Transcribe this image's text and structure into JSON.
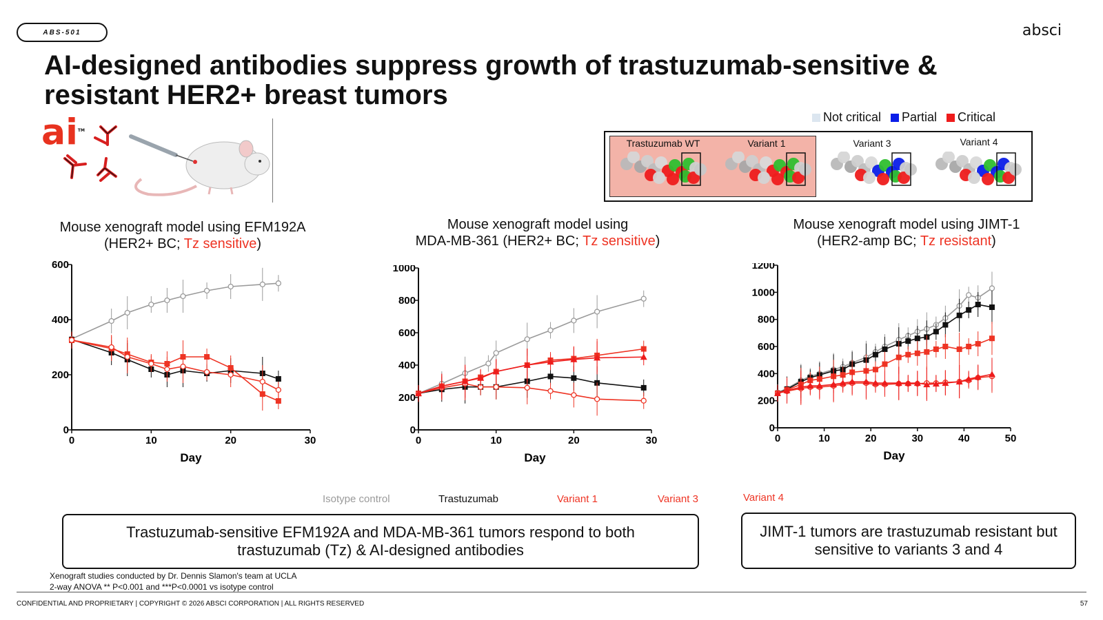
{
  "tag": "ABS-501",
  "logo": "absci",
  "title": "AI-designed antibodies suppress growth of trastuzumab-sensitive & resistant HER2+ breast tumors",
  "ai_logo": "ai",
  "ai_tm": "TM",
  "epitope_legend": [
    {
      "label": "Not critical",
      "color": "#dce6f0"
    },
    {
      "label": "Partial",
      "color": "#0b1ee8"
    },
    {
      "label": "Critical",
      "color": "#ee1c1c"
    }
  ],
  "variants": [
    "Trastuzumab WT",
    "Variant 1",
    "Variant 3",
    "Variant 4"
  ],
  "colors": {
    "isotype": "#9a9a9a",
    "trastuzumab": "#111111",
    "variant1": "#ee3424",
    "variant3": "#ee3424",
    "variant4": "#ee1c1c"
  },
  "panels": [
    {
      "title_1": "Mouse xenograft model using EFM192A",
      "title_2a": "(HER2+ BC; ",
      "title_red": "Tz sensitive",
      "title_2b": ")"
    },
    {
      "title_1": "Mouse xenograft model using",
      "title_2a": "MDA-MB-361 (HER2+ BC; ",
      "title_red": "Tz sensitive",
      "title_2b": ")"
    },
    {
      "title_1": "Mouse xenograft model using JIMT-1",
      "title_2a": "(HER2-amp BC; ",
      "title_red": "Tz resistant",
      "title_2b": ")"
    }
  ],
  "chart_data": [
    {
      "type": "line",
      "xlabel": "Day",
      "xlim": [
        0,
        30
      ],
      "ylim": [
        0,
        600
      ],
      "xticks": [
        "0",
        "10",
        "20",
        "30"
      ],
      "yticks": [
        "0",
        "200",
        "400",
        "600"
      ],
      "series": [
        {
          "key": "isotype",
          "x": [
            0,
            5,
            7,
            10,
            12,
            14,
            17,
            20,
            24,
            26
          ],
          "y": [
            330,
            395,
            425,
            455,
            470,
            485,
            505,
            520,
            528,
            532
          ]
        },
        {
          "key": "trastuzumab",
          "x": [
            0,
            5,
            7,
            10,
            12,
            14,
            17,
            20,
            24,
            26
          ],
          "y": [
            328,
            280,
            255,
            220,
            200,
            215,
            205,
            215,
            205,
            185
          ]
        },
        {
          "key": "variant1",
          "x": [
            0,
            5,
            7,
            10,
            12,
            14,
            17,
            20,
            24,
            26
          ],
          "y": [
            325,
            295,
            275,
            245,
            240,
            265,
            265,
            225,
            130,
            105
          ]
        },
        {
          "key": "variant3",
          "x": [
            0,
            5,
            7,
            10,
            12,
            14,
            17,
            20,
            24,
            26
          ],
          "y": [
            326,
            300,
            265,
            240,
            220,
            230,
            210,
            200,
            175,
            145
          ]
        }
      ]
    },
    {
      "type": "line",
      "xlabel": "Day",
      "xlim": [
        0,
        30
      ],
      "ylim": [
        0,
        1000
      ],
      "xticks": [
        "0",
        "10",
        "20",
        "30"
      ],
      "yticks": [
        "0",
        "200",
        "400",
        "600",
        "800",
        "1000"
      ],
      "series": [
        {
          "key": "isotype",
          "x": [
            0,
            3,
            6,
            9,
            10,
            14,
            17,
            20,
            23,
            29
          ],
          "y": [
            225,
            285,
            350,
            410,
            475,
            560,
            615,
            675,
            730,
            810
          ]
        },
        {
          "key": "trastuzumab",
          "x": [
            0,
            3,
            6,
            8,
            10,
            14,
            17,
            20,
            23,
            29
          ],
          "y": [
            225,
            250,
            265,
            265,
            265,
            300,
            330,
            320,
            290,
            260
          ]
        },
        {
          "key": "variant1",
          "x": [
            0,
            3,
            6,
            8,
            10,
            14,
            17,
            20,
            23,
            29
          ],
          "y": [
            225,
            270,
            300,
            325,
            360,
            400,
            430,
            440,
            460,
            500
          ]
        },
        {
          "key": "variant3",
          "x": [
            0,
            3,
            6,
            8,
            10,
            14,
            17,
            20,
            23,
            29
          ],
          "y": [
            225,
            260,
            285,
            265,
            265,
            260,
            240,
            215,
            190,
            180
          ]
        },
        {
          "key": "variant4",
          "x": [
            0,
            3,
            6,
            8,
            10,
            14,
            17,
            20,
            23,
            29
          ],
          "y": [
            225,
            270,
            300,
            320,
            360,
            400,
            420,
            435,
            445,
            450
          ]
        }
      ]
    },
    {
      "type": "line",
      "xlabel": "Day",
      "xlim": [
        0,
        50
      ],
      "ylim": [
        0,
        1200
      ],
      "xticks": [
        "0",
        "10",
        "20",
        "30",
        "40",
        "50"
      ],
      "yticks": [
        "0",
        "200",
        "400",
        "600",
        "800",
        "1000",
        "1200"
      ],
      "series": [
        {
          "key": "isotype",
          "x": [
            0,
            2,
            5,
            7,
            9,
            12,
            14,
            16,
            19,
            21,
            23,
            26,
            28,
            30,
            32,
            34,
            36,
            39,
            41,
            43,
            46
          ],
          "y": [
            260,
            290,
            350,
            380,
            400,
            430,
            450,
            480,
            520,
            560,
            600,
            650,
            680,
            710,
            730,
            760,
            810,
            900,
            980,
            960,
            1030
          ]
        },
        {
          "key": "trastuzumab",
          "x": [
            0,
            2,
            5,
            7,
            9,
            12,
            14,
            16,
            19,
            21,
            23,
            26,
            28,
            30,
            32,
            34,
            36,
            39,
            41,
            43,
            46
          ],
          "y": [
            255,
            285,
            340,
            370,
            390,
            420,
            430,
            470,
            500,
            540,
            580,
            620,
            640,
            660,
            670,
            710,
            760,
            830,
            870,
            910,
            890
          ]
        },
        {
          "key": "variant1",
          "x": [
            0,
            2,
            5,
            7,
            9,
            12,
            14,
            16,
            19,
            21,
            23,
            26,
            28,
            30,
            32,
            34,
            36,
            39,
            41,
            43,
            46
          ],
          "y": [
            255,
            280,
            320,
            350,
            360,
            380,
            390,
            410,
            420,
            430,
            470,
            520,
            540,
            550,
            560,
            580,
            600,
            580,
            600,
            620,
            660
          ]
        },
        {
          "key": "variant3",
          "x": [
            0,
            2,
            5,
            7,
            9,
            12,
            14,
            16,
            19,
            21,
            23,
            26,
            28,
            30,
            32,
            34,
            36,
            39,
            41,
            43,
            46
          ],
          "y": [
            255,
            270,
            290,
            300,
            300,
            310,
            320,
            330,
            330,
            320,
            320,
            325,
            325,
            325,
            330,
            330,
            335,
            340,
            350,
            370,
            380
          ]
        },
        {
          "key": "variant4",
          "x": [
            0,
            2,
            5,
            7,
            9,
            12,
            14,
            16,
            19,
            21,
            23,
            26,
            28,
            30,
            32,
            34,
            36,
            39,
            41,
            43,
            46
          ],
          "y": [
            255,
            275,
            300,
            310,
            310,
            320,
            330,
            340,
            340,
            330,
            330,
            330,
            330,
            330,
            320,
            325,
            330,
            340,
            360,
            375,
            395
          ]
        }
      ]
    }
  ],
  "series_legend": {
    "isotype": "Isotype control",
    "trastuzumab": "Trastuzumab",
    "variant1": "Variant 1",
    "variant3": "Variant 3",
    "variant4": "Variant 4"
  },
  "box1": "Trastuzumab-sensitive EFM192A and MDA-MB-361 tumors respond to both trastuzumab (Tz) & AI-designed antibodies",
  "box2": "JIMT-1 tumors are trastuzumab resistant but sensitive to variants 3 and 4",
  "footnote_1": "Xenograft studies conducted by Dr. Dennis Slamon's team at UCLA",
  "footnote_2": "2-way ANOVA ** P<0.001 and ***P<0.0001 vs isotype control",
  "confidential": "CONFIDENTIAL AND PROPRIETARY | COPYRIGHT © 2026 ABSCI CORPORATION | ALL RIGHTS RESERVED",
  "page_number": "57"
}
